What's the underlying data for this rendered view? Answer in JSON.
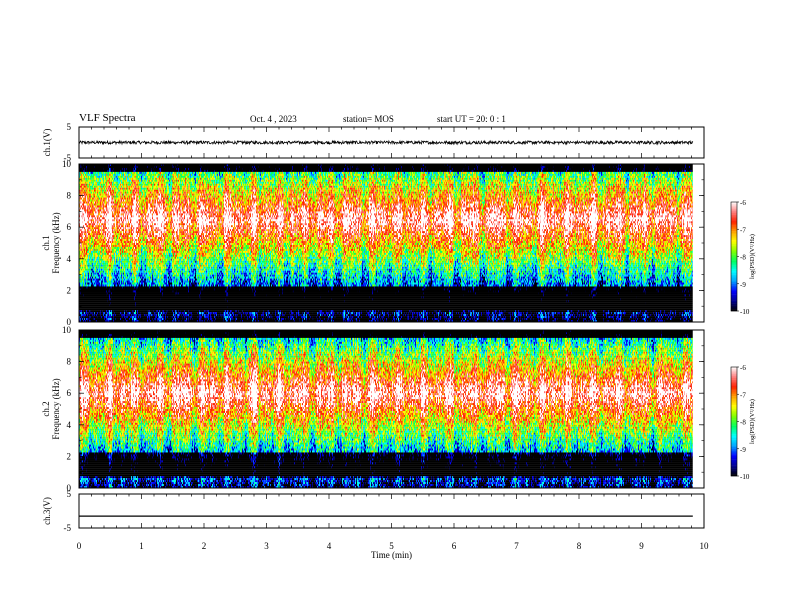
{
  "header": {
    "title": "VLF Spectra",
    "date": "Oct. 4 , 2023",
    "station": "station= MOS",
    "start": "start UT = 20: 0 : 1"
  },
  "chart_data": [
    {
      "type": "line",
      "panel": "ch1-waveform",
      "ylabel": "ch.1(V)",
      "ylim": [
        -5,
        5
      ],
      "yticks": [
        "5",
        "-5"
      ],
      "series": [
        {
          "values_note": "noise",
          "mean": 0,
          "amplitude": 0.5
        }
      ]
    },
    {
      "type": "heatmap",
      "panel": "ch1-spectrogram",
      "ylabel_top": "ch.1",
      "ylabel": "Frequency (kHz)",
      "ylim": [
        0,
        10
      ],
      "yticks": [
        "0",
        "2",
        "4",
        "6",
        "8",
        "10"
      ],
      "colorbar": {
        "label": "log(PSD)(V²/Hz)",
        "range": [
          -10,
          -6
        ],
        "ticks": [
          "-6",
          "-7",
          "-8",
          "-9",
          "-10"
        ]
      },
      "band_center_khz": 6.5,
      "grid": false
    },
    {
      "type": "heatmap",
      "panel": "ch2-spectrogram",
      "ylabel_top": "ch.2",
      "ylabel": "Frequency (kHz)",
      "ylim": [
        0,
        10
      ],
      "yticks": [
        "0",
        "2",
        "4",
        "6",
        "8",
        "10"
      ],
      "colorbar": {
        "label": "log(PSD)(V²/Hz)",
        "range": [
          -10,
          -6
        ],
        "ticks": [
          "-6",
          "-7",
          "-8",
          "-9",
          "-10"
        ]
      },
      "band_center_khz": 6.0,
      "grid": false
    },
    {
      "type": "line",
      "panel": "ch3-waveform",
      "ylabel": "ch.3(V)",
      "ylim": [
        -5,
        5
      ],
      "yticks": [
        "5",
        "-5"
      ],
      "series": [
        {
          "values_note": "flat",
          "mean": -1.5,
          "amplitude": 0
        }
      ]
    }
  ],
  "xaxis": {
    "label": "Time (min)",
    "range": [
      0,
      10
    ],
    "ticks": [
      "0",
      "1",
      "2",
      "3",
      "4",
      "5",
      "6",
      "7",
      "8",
      "9",
      "10"
    ],
    "data_end_min": 9.82
  },
  "colors": {
    "colormap": [
      "#000000",
      "#000090",
      "#0000ff",
      "#00a0ff",
      "#00ffff",
      "#00ff60",
      "#80ff00",
      "#ffff00",
      "#ffa000",
      "#ff2000",
      "#ff8080",
      "#ffffff"
    ]
  }
}
